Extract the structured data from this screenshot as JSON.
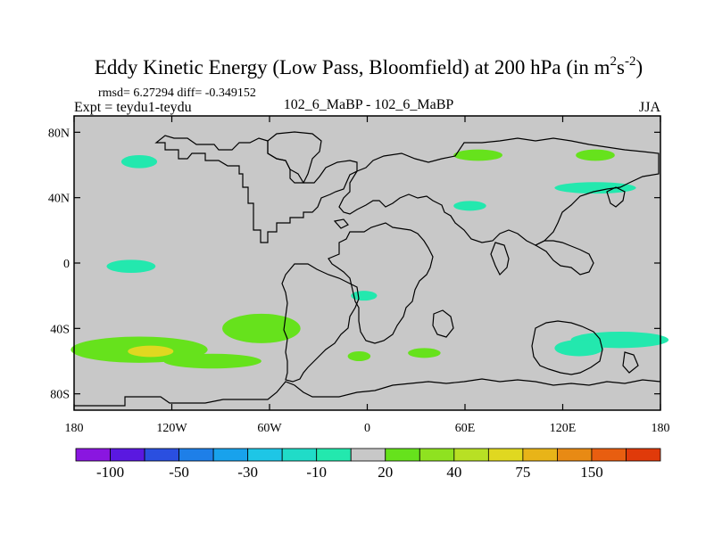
{
  "chart_data": {
    "type": "heatmap",
    "title_main": "Eddy Kinetic Energy (Low Pass, Bloomfield) at 200 hPa (in m",
    "title_sup1": "2",
    "title_mid": "s",
    "title_sup2": "-2",
    "title_end": ")",
    "stats": "rmsd= 6.27294 diff= -0.349152",
    "expt": "Expt = teydu1-teydu",
    "center_label": "102_6_MaBP - 102_6_MaBP",
    "season": "JJA",
    "x_ticks": [
      "180",
      "120W",
      "60W",
      "0",
      "60E",
      "120E",
      "180"
    ],
    "x_tick_values": [
      -180,
      -120,
      -60,
      0,
      60,
      120,
      180
    ],
    "y_ticks": [
      "80N",
      "40N",
      "0",
      "40S",
      "80S"
    ],
    "y_tick_values": [
      80,
      40,
      0,
      -40,
      -80
    ],
    "xlim": [
      -180,
      180
    ],
    "ylim": [
      -90,
      90
    ],
    "colorbar": {
      "colors": [
        "#8a16e0",
        "#5a18e0",
        "#2a4fe0",
        "#1e7fe8",
        "#18a2ec",
        "#1ec6e6",
        "#20dcc8",
        "#23e8ae",
        "#c8c8c8",
        "#66e21c",
        "#8fe220",
        "#b8e024",
        "#e0d820",
        "#e8b418",
        "#e88a14",
        "#e85e10",
        "#e03a0a"
      ],
      "labels": [
        "-100",
        "-50",
        "-30",
        "-10",
        "20",
        "40",
        "75",
        "150"
      ],
      "label_boundaries": [
        1,
        3,
        5,
        7,
        9,
        11,
        13,
        15
      ]
    },
    "anomalies": [
      {
        "name": "anomaly-pacific-south",
        "lon": -140,
        "lat": -53,
        "rx": 42,
        "ry": 8,
        "color": "#66e21c"
      },
      {
        "name": "anomaly-pacific-south-core",
        "lon": -133,
        "lat": -54,
        "rx": 14,
        "ry": 3.5,
        "color": "#e0d820"
      },
      {
        "name": "anomaly-south-america-west",
        "lon": -65,
        "lat": -40,
        "rx": 24,
        "ry": 9,
        "color": "#66e21c"
      },
      {
        "name": "anomaly-south-pacific-east",
        "lon": -95,
        "lat": -60,
        "rx": 30,
        "ry": 4.5,
        "color": "#66e21c"
      },
      {
        "name": "anomaly-tropical-pacific",
        "lon": -145,
        "lat": -2,
        "rx": 15,
        "ry": 4,
        "color": "#23e8ae"
      },
      {
        "name": "anomaly-north-pacific",
        "lon": -140,
        "lat": 62,
        "rx": 11,
        "ry": 4,
        "color": "#23e8ae"
      },
      {
        "name": "anomaly-siberia",
        "lon": 68,
        "lat": 66,
        "rx": 15,
        "ry": 3.5,
        "color": "#66e21c"
      },
      {
        "name": "anomaly-arctic-east",
        "lon": 140,
        "lat": 66,
        "rx": 12,
        "ry": 3.5,
        "color": "#66e21c"
      },
      {
        "name": "anomaly-north-pacific-east",
        "lon": 140,
        "lat": 46,
        "rx": 25,
        "ry": 3.5,
        "color": "#23e8ae"
      },
      {
        "name": "anomaly-indian-ocean-south",
        "lon": 155,
        "lat": -47,
        "rx": 30,
        "ry": 5,
        "color": "#23e8ae"
      },
      {
        "name": "anomaly-australia",
        "lon": 130,
        "lat": -52,
        "rx": 15,
        "ry": 5,
        "color": "#23e8ae"
      },
      {
        "name": "anomaly-south-atlantic",
        "lon": -5,
        "lat": -57,
        "rx": 7,
        "ry": 3,
        "color": "#66e21c"
      },
      {
        "name": "anomaly-africa-south",
        "lon": 35,
        "lat": -55,
        "rx": 10,
        "ry": 3,
        "color": "#66e21c"
      },
      {
        "name": "anomaly-africa-central",
        "lon": -2,
        "lat": -20,
        "rx": 8,
        "ry": 3,
        "color": "#23e8ae"
      },
      {
        "name": "anomaly-indian-ocean",
        "lon": 63,
        "lat": 35,
        "rx": 10,
        "ry": 3,
        "color": "#23e8ae"
      }
    ]
  }
}
